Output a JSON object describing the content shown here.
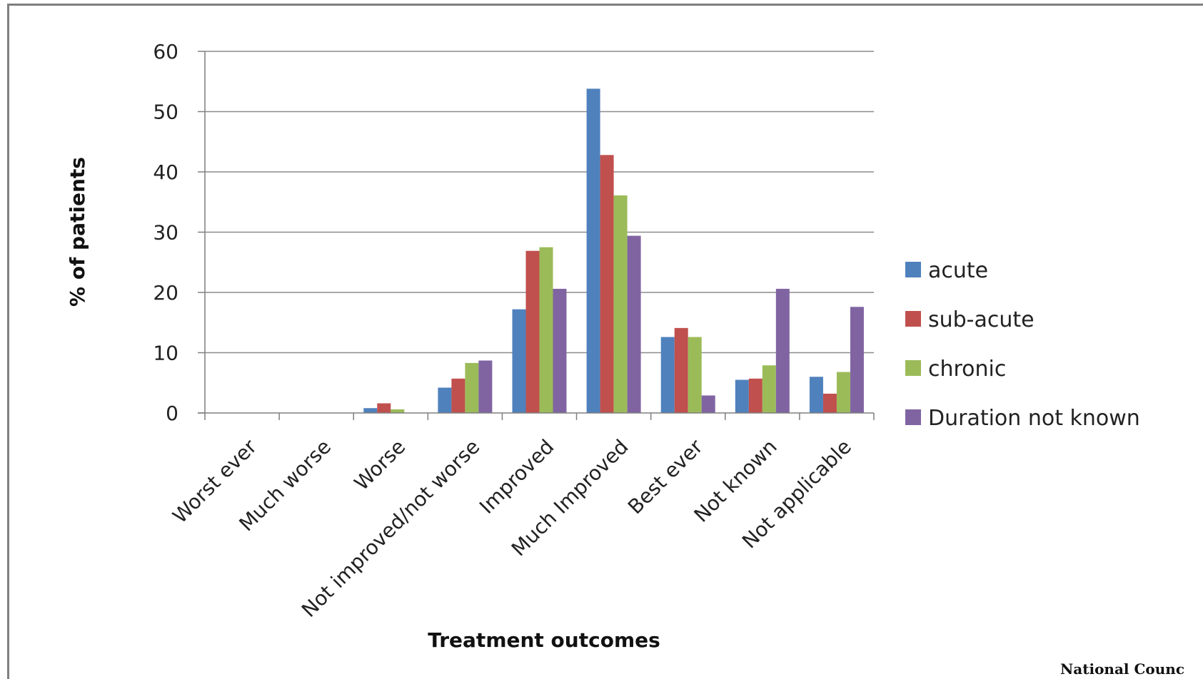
{
  "chart_data": {
    "type": "bar",
    "title": "",
    "xlabel": "Treatment outcomes",
    "ylabel": "% of patients",
    "ylim": [
      0,
      60
    ],
    "yticks": [
      "0",
      "10",
      "20",
      "30",
      "40",
      "50",
      "60"
    ],
    "grid": true,
    "legend_position": "right",
    "categories": [
      "Worst ever",
      "Much worse",
      "Worse",
      "Not improved/not worse",
      "Improved",
      "Much Improved",
      "Best ever",
      "Not known",
      "Not applicable"
    ],
    "series": [
      {
        "name": "acute",
        "color": "#4f81bd",
        "values": [
          0,
          0,
          0.8,
          4.2,
          17.2,
          53.8,
          12.6,
          5.5,
          6.0
        ]
      },
      {
        "name": "sub-acute",
        "color": "#c0504d",
        "values": [
          0,
          0,
          1.6,
          5.7,
          26.9,
          42.8,
          14.1,
          5.7,
          3.2
        ]
      },
      {
        "name": "chronic",
        "color": "#9bbb59",
        "values": [
          0,
          0,
          0.6,
          8.3,
          27.5,
          36.1,
          12.6,
          7.9,
          6.8
        ]
      },
      {
        "name": "Duration not known",
        "color": "#8064a2",
        "values": [
          0,
          0,
          0,
          8.7,
          20.6,
          29.4,
          2.9,
          20.6,
          17.6
        ]
      }
    ]
  },
  "footer_text": "National Counc"
}
